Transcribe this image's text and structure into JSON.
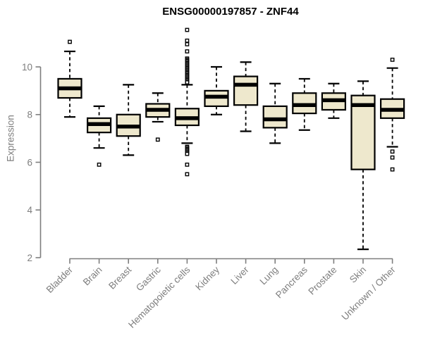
{
  "title": "ENSG00000197857 - ZNF44",
  "colors": {
    "box_fill": "#EEE8CD",
    "box_stroke": "#000000",
    "median": "#000000",
    "whisker": "#000000",
    "outlier_stroke": "#000000",
    "outlier_fill": "#ffffff",
    "axis": "#7e7e7e",
    "tick_label": "#7e7e7e",
    "title_color": "#000000",
    "background": "#ffffff"
  },
  "chart_data": {
    "type": "boxplot",
    "title": "ENSG00000197857 - ZNF44",
    "xlabel": "",
    "ylabel": "Expression",
    "ylim": [
      2,
      11.6
    ],
    "yticks": [
      2,
      4,
      6,
      8,
      10
    ],
    "grid": false,
    "legend": "none",
    "categories": [
      "Bladder",
      "Brain",
      "Breast",
      "Gastric",
      "Hematopoietic cells",
      "Kidney",
      "Liver",
      "Lung",
      "Pancreas",
      "Prostate",
      "Skin",
      "Unknown / Other"
    ],
    "boxes": [
      {
        "category": "Bladder",
        "whisker_low": 7.9,
        "q1": 8.7,
        "median": 9.1,
        "q3": 9.5,
        "whisker_high": 10.65,
        "outliers": [
          11.05
        ]
      },
      {
        "category": "Brain",
        "whisker_low": 6.6,
        "q1": 7.25,
        "median": 7.6,
        "q3": 7.85,
        "whisker_high": 8.35,
        "outliers": [
          5.9
        ]
      },
      {
        "category": "Breast",
        "whisker_low": 6.3,
        "q1": 7.1,
        "median": 7.5,
        "q3": 8.0,
        "whisker_high": 9.25,
        "outliers": []
      },
      {
        "category": "Gastric",
        "whisker_low": 7.7,
        "q1": 7.9,
        "median": 8.2,
        "q3": 8.45,
        "whisker_high": 8.9,
        "outliers": [
          6.95
        ]
      },
      {
        "category": "Hematopoietic cells",
        "whisker_low": 6.8,
        "q1": 7.55,
        "median": 7.85,
        "q3": 8.25,
        "whisker_high": 9.25,
        "outliers": [
          11.55,
          11.1,
          10.95,
          10.65,
          10.35,
          10.3,
          10.25,
          10.2,
          10.15,
          10.1,
          10.05,
          10.0,
          9.95,
          9.9,
          9.85,
          9.8,
          9.75,
          9.7,
          9.65,
          9.6,
          9.55,
          9.5,
          9.45,
          9.4,
          9.35,
          6.65,
          6.6,
          6.55,
          6.5,
          6.45,
          6.4,
          6.35,
          5.9,
          5.5
        ]
      },
      {
        "category": "Kidney",
        "whisker_low": 8.0,
        "q1": 8.35,
        "median": 8.75,
        "q3": 9.0,
        "whisker_high": 10.0,
        "outliers": []
      },
      {
        "category": "Liver",
        "whisker_low": 7.3,
        "q1": 8.4,
        "median": 9.25,
        "q3": 9.6,
        "whisker_high": 10.2,
        "outliers": []
      },
      {
        "category": "Lung",
        "whisker_low": 6.8,
        "q1": 7.45,
        "median": 7.8,
        "q3": 8.35,
        "whisker_high": 9.3,
        "outliers": []
      },
      {
        "category": "Pancreas",
        "whisker_low": 7.35,
        "q1": 8.05,
        "median": 8.4,
        "q3": 8.9,
        "whisker_high": 9.5,
        "outliers": []
      },
      {
        "category": "Prostate",
        "whisker_low": 7.85,
        "q1": 8.2,
        "median": 8.6,
        "q3": 8.9,
        "whisker_high": 9.3,
        "outliers": []
      },
      {
        "category": "Skin",
        "whisker_low": 2.35,
        "q1": 5.7,
        "median": 8.4,
        "q3": 8.8,
        "whisker_high": 9.4,
        "outliers": []
      },
      {
        "category": "Unknown / Other",
        "whisker_low": 6.65,
        "q1": 7.85,
        "median": 8.2,
        "q3": 8.65,
        "whisker_high": 9.95,
        "outliers": [
          10.3,
          6.45,
          6.2,
          5.7
        ]
      }
    ]
  }
}
